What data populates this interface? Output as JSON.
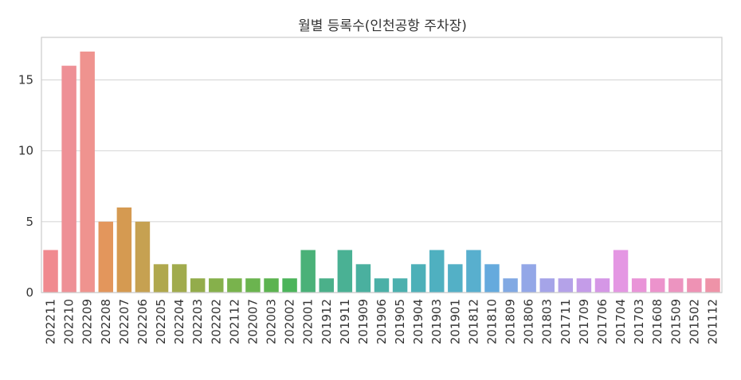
{
  "chart_data": {
    "type": "bar",
    "title": "월별 등록수(인천공항 주차장)",
    "xlabel": "",
    "ylabel": "",
    "ylim": [
      0,
      18
    ],
    "yticks": [
      0,
      5,
      10,
      15
    ],
    "grid": "horizontal",
    "categories": [
      "202211",
      "202210",
      "202209",
      "202208",
      "202207",
      "202206",
      "202205",
      "202204",
      "202203",
      "202202",
      "202112",
      "202007",
      "202003",
      "202002",
      "202001",
      "201912",
      "201911",
      "201909",
      "201906",
      "201905",
      "201904",
      "201903",
      "201901",
      "201812",
      "201810",
      "201809",
      "201806",
      "201803",
      "201711",
      "201709",
      "201706",
      "201704",
      "201703",
      "201608",
      "201509",
      "201502",
      "201112"
    ],
    "values": [
      3,
      16,
      17,
      5,
      6,
      5,
      2,
      2,
      1,
      1,
      1,
      1,
      1,
      1,
      3,
      1,
      3,
      2,
      1,
      1,
      2,
      3,
      2,
      3,
      2,
      1,
      2,
      1,
      1,
      1,
      1,
      3,
      1,
      1,
      1,
      1,
      1
    ],
    "colors": [
      "#f08a8f",
      "#ee9096",
      "#ef938f",
      "#e3965c",
      "#d59a51",
      "#c6a151",
      "#b0a84d",
      "#a1ab4d",
      "#93ac4b",
      "#86b04b",
      "#79b34d",
      "#6bb44f",
      "#5cb350",
      "#4cb45b",
      "#4ab178",
      "#4bb08a",
      "#4ab194",
      "#4ab09f",
      "#4bb0a7",
      "#4cb0ae",
      "#4db0b8",
      "#4fb0c0",
      "#53b0c6",
      "#58afce",
      "#65aadd",
      "#81a9e3",
      "#93a7e7",
      "#a5a4e8",
      "#b4a2e8",
      "#c49ce8",
      "#d597e6",
      "#e497e3",
      "#e994d8",
      "#ec93cc",
      "#ec94c0",
      "#ee92b4",
      "#ee93a8"
    ]
  }
}
